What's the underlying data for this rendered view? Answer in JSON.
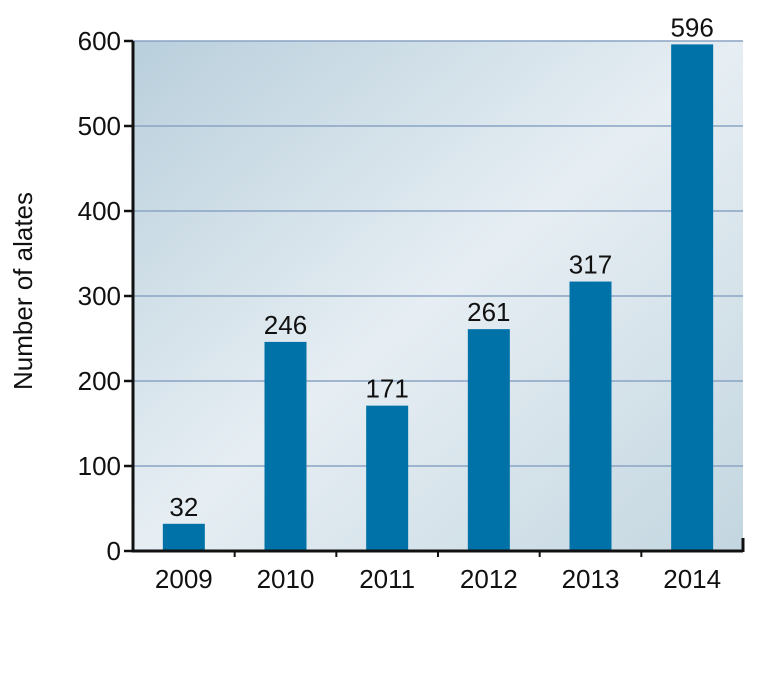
{
  "chart_data": {
    "type": "bar",
    "title": "",
    "xlabel": "",
    "ylabel": "Number of alates",
    "categories": [
      "2009",
      "2010",
      "2011",
      "2012",
      "2013",
      "2014"
    ],
    "values": [
      32,
      246,
      171,
      261,
      317,
      596
    ],
    "data_labels": [
      "32",
      "246",
      "171",
      "261",
      "317",
      "596"
    ],
    "ylim": [
      0,
      600
    ],
    "yticks": [
      0,
      100,
      200,
      300,
      400,
      500,
      600
    ],
    "ytick_labels": [
      "0",
      "100",
      "200",
      "300",
      "400",
      "500",
      "600"
    ],
    "grid": true,
    "legend": "none",
    "colors": {
      "bar": "#0072a8",
      "gridline": "#8aa4c4",
      "axis": "#111111",
      "plot_bg_dark": "#b9cfdc",
      "plot_bg_light": "#e6eef3"
    }
  }
}
